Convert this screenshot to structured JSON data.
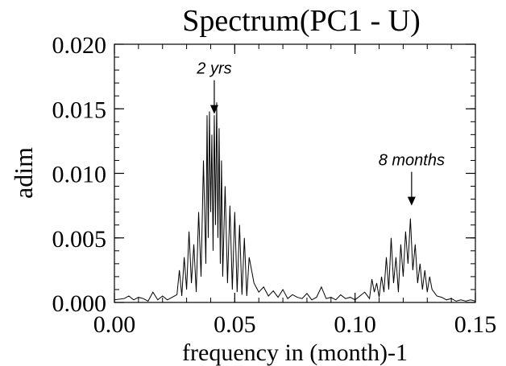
{
  "chart_data": {
    "type": "line",
    "title": "Spectrum(PC1 - U)",
    "xlabel": "frequency in (month)-1",
    "ylabel": "adim",
    "xlim": [
      0.0,
      0.15
    ],
    "ylim": [
      0.0,
      0.02
    ],
    "x_ticks": [
      "0.00",
      "0.05",
      "0.10",
      "0.15"
    ],
    "y_ticks": [
      "0.000",
      "0.005",
      "0.010",
      "0.015",
      "0.020"
    ],
    "grid": false,
    "series": [
      {
        "x": [
          0.0,
          0.004,
          0.006,
          0.008,
          0.01,
          0.012,
          0.014,
          0.016,
          0.018,
          0.02,
          0.022,
          0.024,
          0.026,
          0.027,
          0.028,
          0.029,
          0.03,
          0.031,
          0.032,
          0.033,
          0.034,
          0.035,
          0.036,
          0.037,
          0.038,
          0.0385,
          0.039,
          0.0395,
          0.04,
          0.0405,
          0.041,
          0.0415,
          0.042,
          0.0425,
          0.043,
          0.0435,
          0.044,
          0.0445,
          0.045,
          0.046,
          0.047,
          0.048,
          0.049,
          0.05,
          0.051,
          0.052,
          0.053,
          0.054,
          0.055,
          0.056,
          0.058,
          0.06,
          0.062,
          0.064,
          0.066,
          0.068,
          0.07,
          0.072,
          0.074,
          0.076,
          0.078,
          0.08,
          0.082,
          0.084,
          0.086,
          0.088,
          0.09,
          0.092,
          0.094,
          0.096,
          0.098,
          0.1,
          0.102,
          0.104,
          0.106,
          0.107,
          0.108,
          0.109,
          0.11,
          0.111,
          0.112,
          0.113,
          0.114,
          0.115,
          0.116,
          0.117,
          0.118,
          0.119,
          0.12,
          0.121,
          0.122,
          0.123,
          0.124,
          0.125,
          0.126,
          0.127,
          0.128,
          0.129,
          0.13,
          0.131,
          0.132,
          0.134,
          0.136,
          0.138,
          0.14,
          0.142,
          0.144,
          0.146,
          0.148,
          0.15
        ],
        "values": [
          0.0002,
          0.0003,
          0.0005,
          0.0002,
          0.0004,
          0.0003,
          0.0001,
          0.0008,
          0.0002,
          0.0005,
          0.0002,
          0.0004,
          0.0006,
          0.0025,
          0.0005,
          0.0035,
          0.001,
          0.0055,
          0.0015,
          0.0045,
          0.0008,
          0.007,
          0.002,
          0.011,
          0.003,
          0.0145,
          0.005,
          0.0148,
          0.007,
          0.013,
          0.004,
          0.0145,
          0.006,
          0.0155,
          0.005,
          0.0135,
          0.003,
          0.011,
          0.002,
          0.009,
          0.0015,
          0.0075,
          0.001,
          0.007,
          0.0008,
          0.006,
          0.0006,
          0.005,
          0.0005,
          0.0035,
          0.0015,
          0.0008,
          0.0012,
          0.0005,
          0.0009,
          0.0004,
          0.001,
          0.0003,
          0.0006,
          0.0004,
          0.0003,
          0.0007,
          0.0002,
          0.0004,
          0.0012,
          0.0003,
          0.0004,
          0.0002,
          0.0006,
          0.0003,
          0.0004,
          0.0002,
          0.0005,
          0.0008,
          0.0003,
          0.0018,
          0.0008,
          0.0015,
          0.0004,
          0.002,
          0.0008,
          0.0035,
          0.001,
          0.005,
          0.0015,
          0.0035,
          0.0008,
          0.0045,
          0.002,
          0.0055,
          0.003,
          0.0065,
          0.0025,
          0.0045,
          0.0015,
          0.003,
          0.001,
          0.0025,
          0.0008,
          0.002,
          0.001,
          0.0005,
          0.0004,
          0.0002,
          0.0003,
          0.0001,
          0.0002,
          0.0001,
          0.0002,
          0.0001
        ]
      }
    ],
    "annotations": [
      {
        "text": "2 yrs",
        "x": 0.0415,
        "y": 0.0146
      },
      {
        "text": "8 months",
        "x": 0.1235,
        "y": 0.0075
      }
    ]
  }
}
